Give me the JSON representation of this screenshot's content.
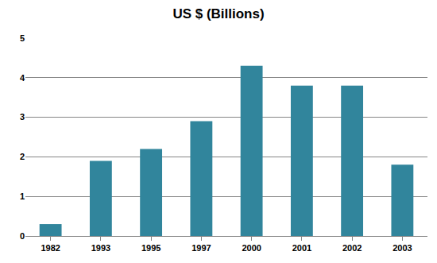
{
  "chart_data": {
    "type": "bar",
    "title": "US $ (Billions)",
    "categories": [
      "1982",
      "1993",
      "1995",
      "1997",
      "2000",
      "2001",
      "2002",
      "2003"
    ],
    "values": [
      0.3,
      1.9,
      2.2,
      2.9,
      4.3,
      3.8,
      3.8,
      1.8
    ],
    "color": "#31859c",
    "ylim": [
      0,
      5
    ],
    "yticks": [
      0,
      1,
      2,
      3,
      4,
      5
    ],
    "grid": true
  }
}
